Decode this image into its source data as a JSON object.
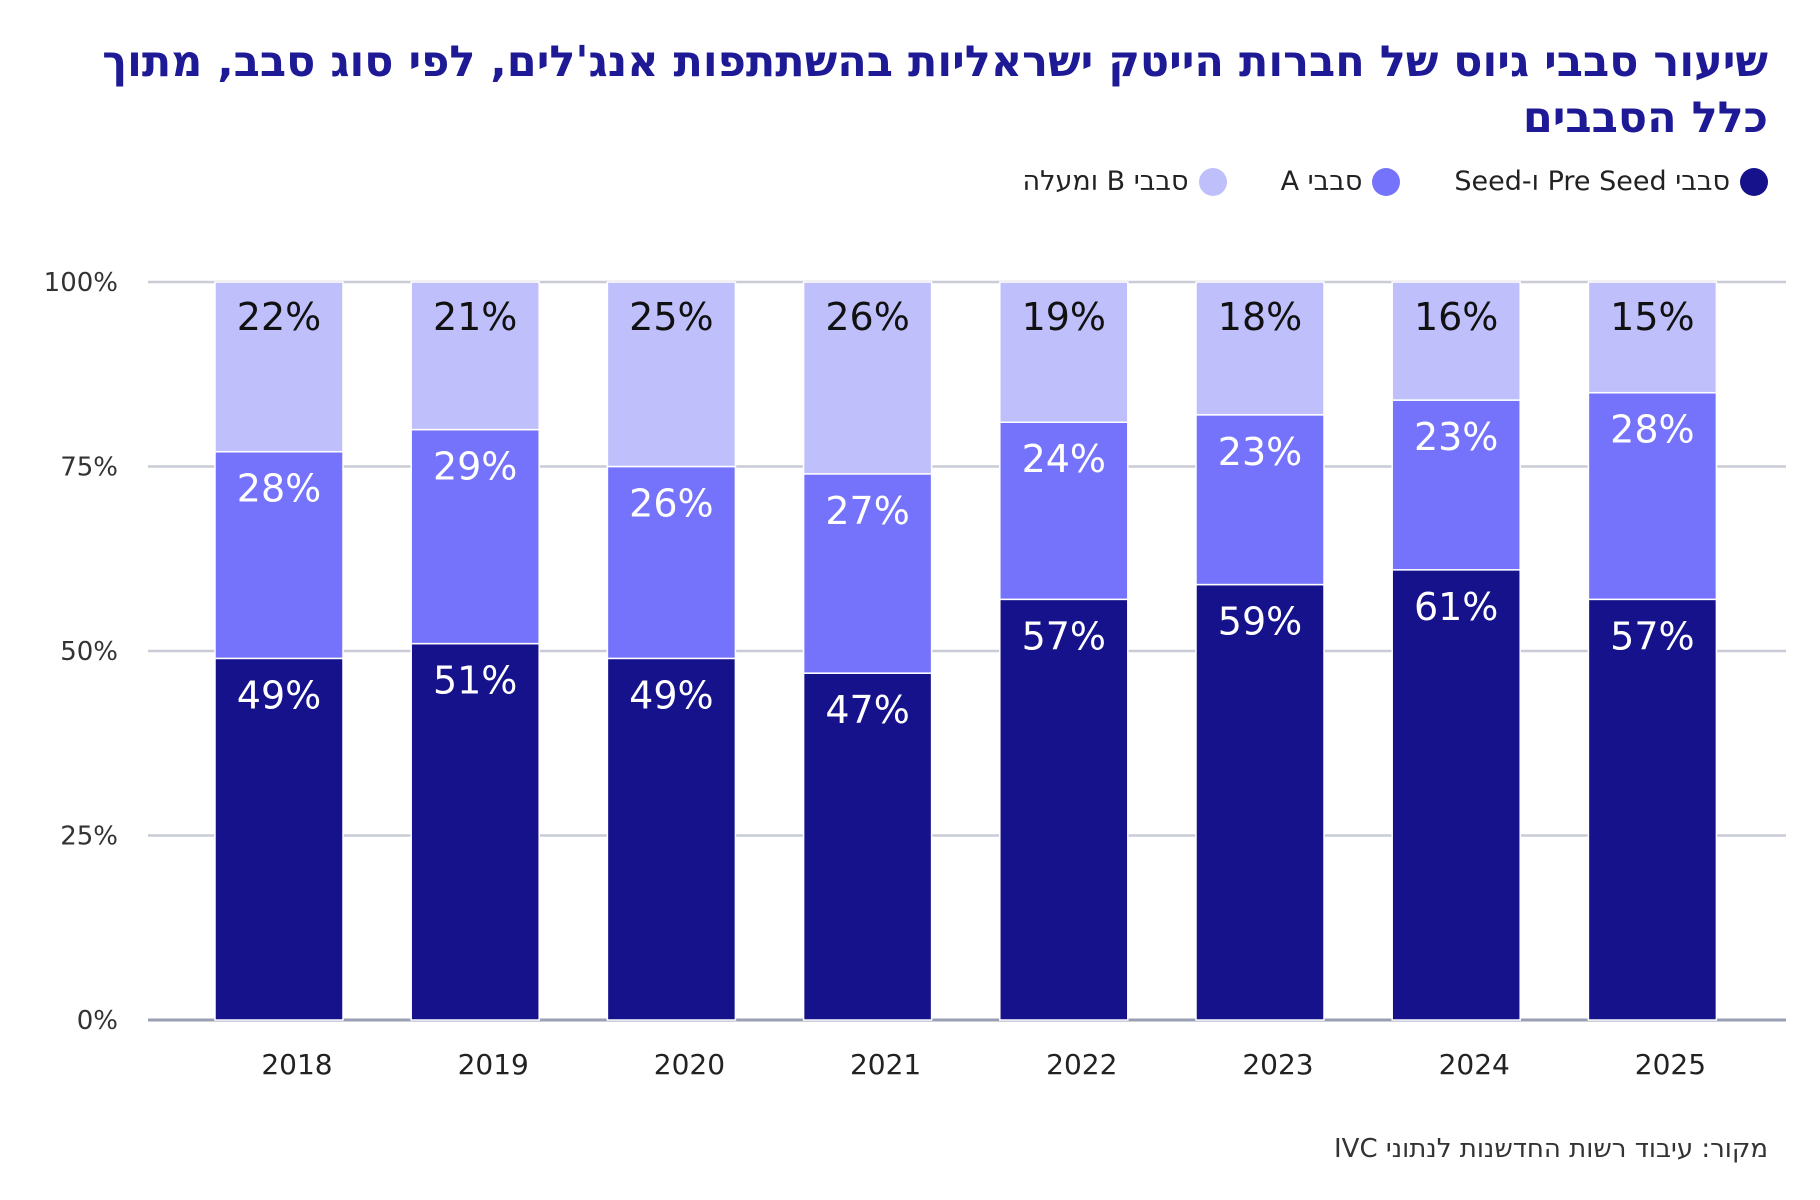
{
  "title": "שיעור סבבי גיוס של חברות הייטק ישראליות בהשתתפות אנג'לים, לפי סוג סבב, מתוך כלל הסבבים",
  "source": "מקור: עיבוד רשות החדשנות לנתוני IVC",
  "legend": [
    {
      "label": "סבבי Pre Seed ו-Seed",
      "color": "#16128c"
    },
    {
      "label": "סבבי A",
      "color": "#7573fb"
    },
    {
      "label": "סבבי B ומעלה",
      "color": "#bfbffc"
    }
  ],
  "chart_data": {
    "type": "bar",
    "stacked": true,
    "categories": [
      "2018",
      "2019",
      "2020",
      "2021",
      "2022",
      "2023",
      "2024",
      "2025"
    ],
    "series": [
      {
        "name": "סבבי Pre Seed ו-Seed",
        "color": "#16128c",
        "values": [
          49,
          51,
          49,
          47,
          57,
          59,
          61,
          57
        ]
      },
      {
        "name": "סבבי A",
        "color": "#7573fb",
        "values": [
          28,
          29,
          26,
          27,
          24,
          23,
          23,
          28
        ]
      },
      {
        "name": "סבבי B ומעלה",
        "color": "#bfbffc",
        "values": [
          22,
          21,
          25,
          26,
          19,
          18,
          16,
          15
        ]
      }
    ],
    "data_labels": [
      [
        "49%",
        "51%",
        "49%",
        "47%",
        "57%",
        "59%",
        "61%",
        "57%"
      ],
      [
        "28%",
        "29%",
        "26%",
        "27%",
        "24%",
        "23%",
        "23%",
        "28%"
      ],
      [
        "22%",
        "21%",
        "25%",
        "26%",
        "19%",
        "18%",
        "16%",
        "15%"
      ]
    ],
    "ylim": [
      0,
      100
    ],
    "yticks": [
      0,
      25,
      50,
      75,
      100
    ],
    "ytick_labels": [
      "0%",
      "25%",
      "50%",
      "75%",
      "100%"
    ],
    "grid": true,
    "legend_position": "top-right",
    "label_colors": [
      "#ffffff",
      "#ffffff",
      "#111111"
    ]
  }
}
